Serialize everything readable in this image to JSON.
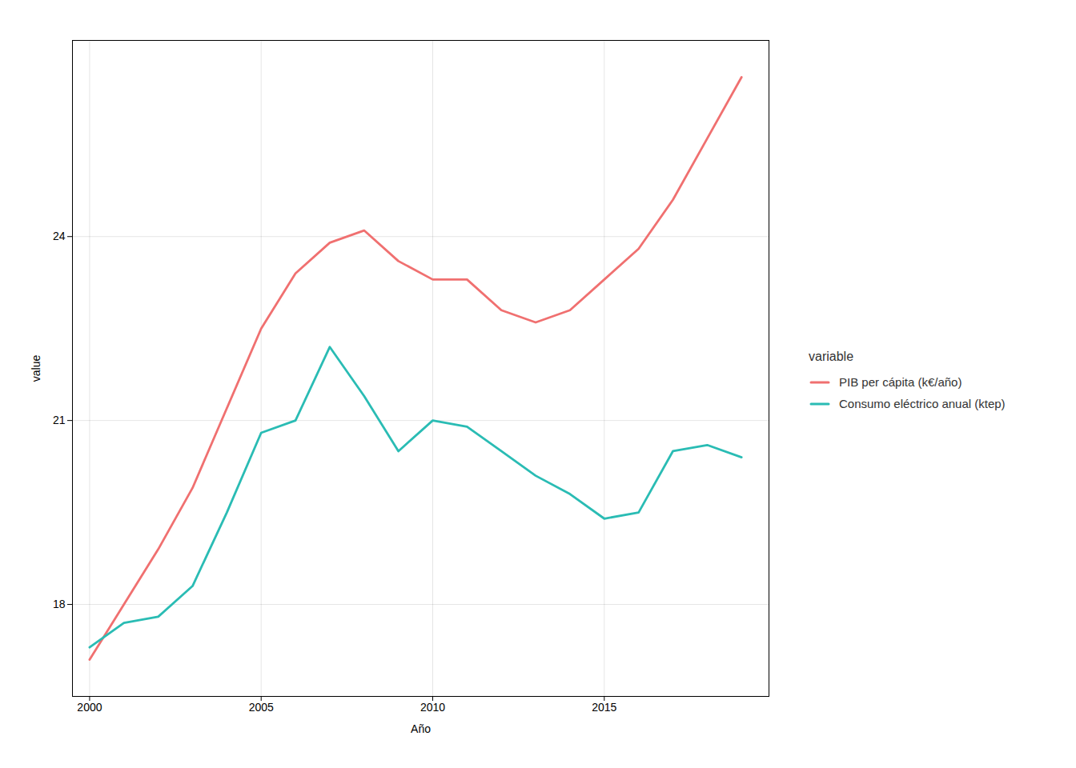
{
  "chart_data": {
    "type": "line",
    "x": [
      2000,
      2001,
      2002,
      2003,
      2004,
      2005,
      2006,
      2007,
      2008,
      2009,
      2010,
      2011,
      2012,
      2013,
      2014,
      2015,
      2016,
      2017,
      2018,
      2019
    ],
    "series": [
      {
        "name": "PIB per cápita (k€/año)",
        "color": "#F07070",
        "values": [
          17.1,
          18.0,
          18.9,
          19.9,
          21.2,
          22.5,
          23.4,
          23.9,
          24.1,
          23.6,
          23.3,
          23.3,
          22.8,
          22.6,
          22.8,
          23.3,
          23.8,
          24.6,
          25.6,
          26.6
        ]
      },
      {
        "name": "Consumo eléctrico anual (ktep)",
        "color": "#2ABCB4",
        "values": [
          17.3,
          17.7,
          17.8,
          18.3,
          19.5,
          20.8,
          21.0,
          22.2,
          21.4,
          20.5,
          21.0,
          20.9,
          20.5,
          20.1,
          19.8,
          19.4,
          19.5,
          20.5,
          20.6,
          20.4
        ]
      }
    ],
    "xlabel": "Año",
    "ylabel": "value",
    "legend_title": "variable",
    "legend": "right",
    "xlim": [
      1999.5,
      2019.8
    ],
    "xticks": [
      2000,
      2005,
      2010,
      2015
    ],
    "ylim": [
      16.5,
      27.2
    ],
    "yticks": [
      18,
      21,
      24
    ],
    "grid": true
  }
}
